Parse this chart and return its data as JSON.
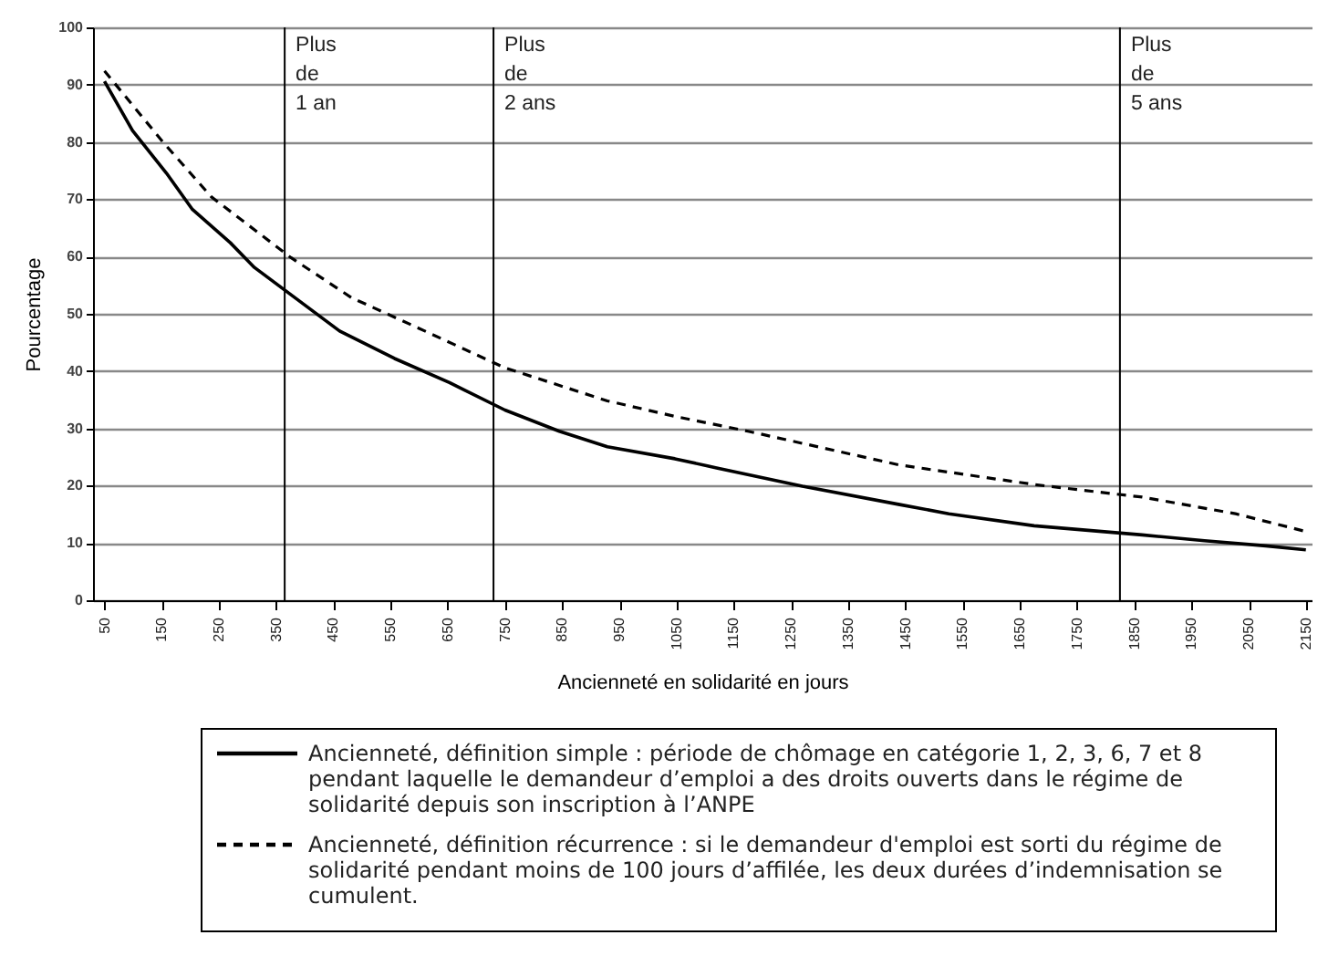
{
  "chart_data": {
    "type": "line",
    "xlabel": "Ancienneté en solidarité en jours",
    "ylabel": "Pourcentage",
    "xlim": [
      30,
      2160
    ],
    "xticks": [
      50,
      150,
      250,
      350,
      450,
      550,
      650,
      750,
      850,
      950,
      1050,
      1150,
      1250,
      1350,
      1450,
      1550,
      1650,
      1750,
      1850,
      1950,
      2050,
      2150
    ],
    "ylim": [
      0,
      100
    ],
    "yticks": [
      0,
      10,
      20,
      30,
      40,
      50,
      60,
      70,
      80,
      90,
      100
    ],
    "grid": "y",
    "legend": "bottom",
    "series": [
      {
        "name": "Ancienneté, définition simple : période de chômage en catégorie 1, 2, 3, 6, 7 et 8 pendant laquelle le demandeur d’emploi a des droits ouverts dans le régime de solidarité depuis son inscription à l’ANPE",
        "color": "#000000",
        "line_style": "solid",
        "x": [
          50,
          99,
          158,
          203,
          270,
          312,
          383,
          461,
          557,
          653,
          750,
          845,
          929,
          1047,
          1120,
          1270,
          1440,
          1526,
          1675,
          1864,
          1973,
          2080,
          2150
        ],
        "values": [
          90.6,
          82,
          74.6,
          68.3,
          62.4,
          58.1,
          52.8,
          47,
          42.2,
          38,
          33.2,
          29.5,
          26.8,
          24.7,
          23.1,
          19.9,
          16.7,
          15.1,
          13,
          11.4,
          10.4,
          9.5,
          8.8
        ]
      },
      {
        "name": "Ancienneté, définition récurrence : si le demandeur d'emploi est sorti du régime de solidarité pendant moins de 100 jours d’affilée, les deux durées d’indemnisation se cumulent.",
        "color": "#000000",
        "line_style": "dashed",
        "x": [
          50,
          152,
          237,
          376,
          482,
          610,
          749,
          929,
          1047,
          1175,
          1440,
          1675,
          1864,
          2027,
          2150
        ],
        "values": [
          92.4,
          80,
          70.4,
          59.8,
          52.8,
          47,
          40.6,
          34.8,
          32.1,
          29.5,
          23.6,
          20.2,
          18,
          15.1,
          12
        ]
      }
    ],
    "ref_lines": [
      {
        "axis": "x",
        "value": 365,
        "label": "Plus de 1 an"
      },
      {
        "axis": "x",
        "value": 730,
        "label": "Plus de 2 ans"
      },
      {
        "axis": "x",
        "value": 1825,
        "label": "Plus de 5 ans"
      }
    ]
  }
}
